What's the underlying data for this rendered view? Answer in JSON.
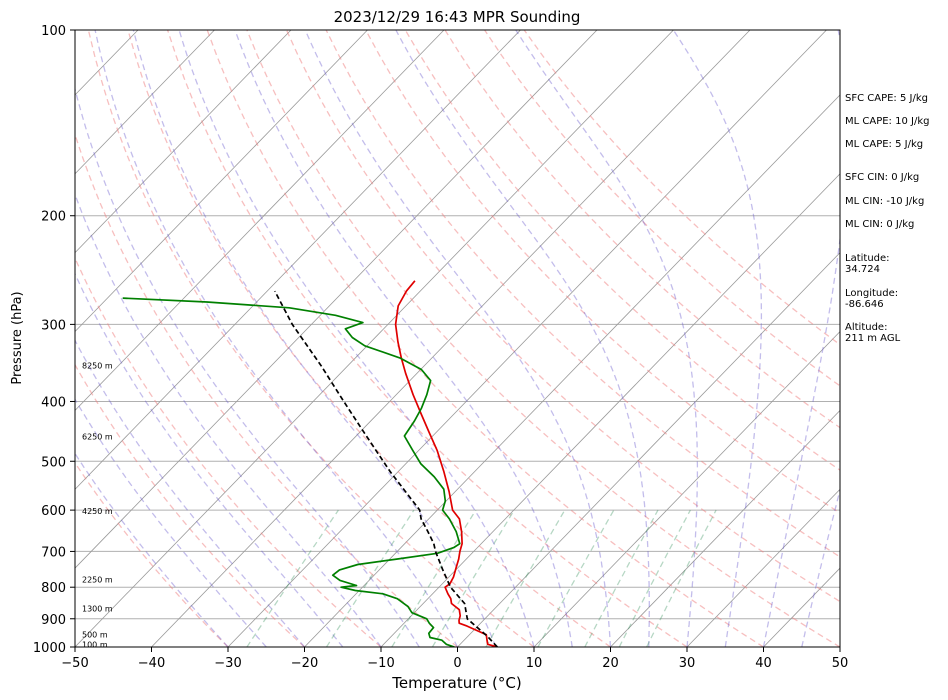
{
  "chart_data": {
    "type": "line",
    "title": "2023/12/29 16:43 MPR Sounding",
    "xlabel": "Temperature (°C)",
    "ylabel": "Pressure (hPa)",
    "xlim": [
      -50,
      50
    ],
    "ylim": [
      1000,
      100
    ],
    "y_scale": "log",
    "skew": true,
    "x_ticks": [
      -50,
      -40,
      -30,
      -20,
      -10,
      0,
      10,
      20,
      30,
      40,
      50
    ],
    "x_tick_labels": [
      "−50",
      "−40",
      "−30",
      "−20",
      "−10",
      "0",
      "10",
      "20",
      "30",
      "40",
      "50"
    ],
    "y_ticks": [
      1000,
      900,
      800,
      700,
      600,
      500,
      400,
      300,
      200,
      100
    ],
    "y_tick_labels": [
      "1000",
      "900",
      "800",
      "700",
      "600",
      "500",
      "400",
      "300",
      "200",
      "100"
    ],
    "grid": true,
    "isotherms": [
      -160,
      -150,
      -140,
      -130,
      -120,
      -110,
      -100,
      -90,
      -80,
      -70,
      -60,
      -50,
      -40,
      -30,
      -20,
      -10,
      0,
      10,
      20,
      30,
      40,
      50
    ],
    "dry_adiabats_C": [
      -30,
      -20,
      -10,
      0,
      10,
      20,
      30,
      40,
      50,
      60,
      70,
      80,
      90,
      100,
      110,
      120
    ],
    "moist_adiabats_C": [
      -30,
      -25,
      -20,
      -15,
      -10,
      -5,
      0,
      5,
      10,
      15,
      20,
      25,
      30,
      35,
      40,
      45
    ],
    "mixing_ratio_g_kg": [
      0.4,
      1,
      2,
      3,
      5,
      8,
      12,
      16,
      20
    ],
    "height_labels": [
      {
        "p": 990,
        "text": "100 m"
      },
      {
        "p": 955,
        "text": "500 m"
      },
      {
        "p": 866,
        "text": "1300 m"
      },
      {
        "p": 778,
        "text": "2250 m"
      },
      {
        "p": 602,
        "text": "4250 m"
      },
      {
        "p": 456,
        "text": "6250 m"
      },
      {
        "p": 350,
        "text": "8250 m"
      }
    ],
    "series": [
      {
        "color": "#e00000",
        "points": [
          [
            1000,
            5.2
          ],
          [
            990,
            3.6
          ],
          [
            975,
            3.0
          ],
          [
            955,
            2.2
          ],
          [
            940,
            0.4
          ],
          [
            925,
            -1.4
          ],
          [
            915,
            -2.8
          ],
          [
            905,
            -3.2
          ],
          [
            890,
            -3.6
          ],
          [
            870,
            -4.5
          ],
          [
            850,
            -6.3
          ],
          [
            835,
            -7.0
          ],
          [
            820,
            -8.0
          ],
          [
            800,
            -9.2
          ],
          [
            790,
            -9.0
          ],
          [
            770,
            -9.4
          ],
          [
            745,
            -10.2
          ],
          [
            720,
            -11.0
          ],
          [
            700,
            -11.8
          ],
          [
            680,
            -12.5
          ],
          [
            650,
            -14.1
          ],
          [
            620,
            -16.0
          ],
          [
            600,
            -18.0
          ],
          [
            560,
            -20.8
          ],
          [
            520,
            -24.0
          ],
          [
            480,
            -27.6
          ],
          [
            450,
            -30.8
          ],
          [
            420,
            -34.2
          ],
          [
            390,
            -37.8
          ],
          [
            360,
            -41.5
          ],
          [
            340,
            -44.0
          ],
          [
            320,
            -46.5
          ],
          [
            300,
            -49.0
          ],
          [
            280,
            -51.0
          ],
          [
            265,
            -51.8
          ],
          [
            255,
            -52.0
          ]
        ]
      },
      {
        "color": "#008000",
        "points": [
          [
            1000,
            -0.4
          ],
          [
            990,
            -1.8
          ],
          [
            975,
            -2.9
          ],
          [
            965,
            -4.8
          ],
          [
            950,
            -5.5
          ],
          [
            930,
            -5.6
          ],
          [
            915,
            -6.7
          ],
          [
            900,
            -7.6
          ],
          [
            880,
            -10.3
          ],
          [
            860,
            -11.6
          ],
          [
            835,
            -14.0
          ],
          [
            820,
            -16.5
          ],
          [
            810,
            -20.5
          ],
          [
            800,
            -22.8
          ],
          [
            795,
            -21.0
          ],
          [
            780,
            -23.8
          ],
          [
            765,
            -25.4
          ],
          [
            750,
            -25.2
          ],
          [
            735,
            -23.5
          ],
          [
            720,
            -19.0
          ],
          [
            705,
            -14.5
          ],
          [
            690,
            -13.1
          ],
          [
            680,
            -12.8
          ],
          [
            650,
            -14.8
          ],
          [
            620,
            -17.3
          ],
          [
            600,
            -19.3
          ],
          [
            580,
            -20.1
          ],
          [
            555,
            -21.8
          ],
          [
            530,
            -24.6
          ],
          [
            505,
            -28.0
          ],
          [
            480,
            -30.8
          ],
          [
            455,
            -33.7
          ],
          [
            430,
            -34.3
          ],
          [
            410,
            -35.0
          ],
          [
            390,
            -36.0
          ],
          [
            370,
            -37.3
          ],
          [
            355,
            -39.9
          ],
          [
            340,
            -44.2
          ],
          [
            325,
            -50.3
          ],
          [
            315,
            -53.0
          ],
          [
            305,
            -55.0
          ],
          [
            298,
            -53.5
          ],
          [
            290,
            -58.0
          ],
          [
            282,
            -65.0
          ],
          [
            276,
            -76.5
          ],
          [
            272,
            -88.0
          ]
        ]
      },
      {
        "color": "#000000",
        "dashed": true,
        "points": [
          [
            1000,
            5.2
          ],
          [
            960,
            2.5
          ],
          [
            900,
            -2.3
          ],
          [
            850,
            -4.6
          ],
          [
            800,
            -8.5
          ],
          [
            750,
            -11.7
          ],
          [
            700,
            -15.0
          ],
          [
            680,
            -16.2
          ],
          [
            650,
            -18.5
          ],
          [
            620,
            -21.0
          ],
          [
            600,
            -22.3
          ],
          [
            560,
            -26.5
          ],
          [
            520,
            -31.0
          ],
          [
            480,
            -35.6
          ],
          [
            450,
            -39.3
          ],
          [
            400,
            -46.0
          ],
          [
            350,
            -53.5
          ],
          [
            300,
            -62.5
          ],
          [
            265,
            -69.0
          ]
        ]
      }
    ],
    "annotations": [
      "SFC CAPE: 5 J/kg",
      "ML CAPE: 10 J/kg",
      "ML CAPE: 5 J/kg",
      "SFC CIN: 0 J/kg",
      "ML CIN: -10 J/kg",
      "ML CIN: 0 J/kg",
      "Latitude:\n34.724",
      "Longitude:\n-86.646",
      "Altitude:\n211 m AGL"
    ]
  }
}
